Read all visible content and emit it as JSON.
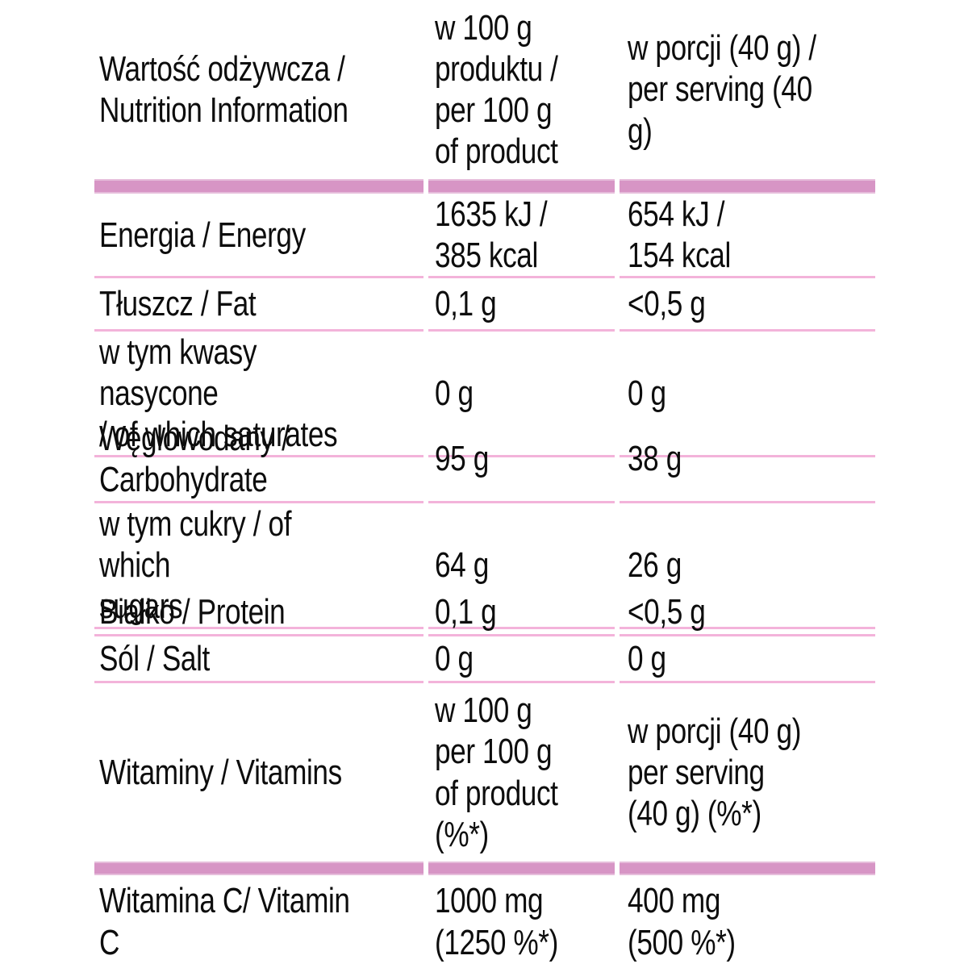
{
  "colors": {
    "thick_bar": "#d795c5",
    "thin_line": "#f3b3da",
    "text": "#0d0d0d",
    "background": "#ffffff"
  },
  "table": {
    "header": {
      "nutrition_information": "Wartość odżywcza /\nNutrition Information",
      "per_100g": "w 100 g\nproduktu /\nper 100 g\nof product",
      "per_serving": "w porcji (40 g) /\nper serving (40 g)"
    },
    "rows": [
      {
        "label": "Energia / Energy",
        "per_100g": "1635 kJ /\n385 kcal",
        "per_serving": "654 kJ /\n154 kcal"
      },
      {
        "label": "Tłuszcz / Fat",
        "per_100g": "0,1 g",
        "per_serving": "<0,5 g"
      },
      {
        "label": "w tym kwasy nasycone\n/ of which saturates",
        "per_100g": "0 g",
        "per_serving": "0 g"
      },
      {
        "label": "Węglowodany /\nCarbohydrate",
        "per_100g": "95 g",
        "per_serving": "38 g"
      },
      {
        "label": "w tym cukry / of which\nsugars",
        "per_100g": "64 g",
        "per_serving": "26 g"
      },
      {
        "label": "Białko / Protein",
        "per_100g": "0,1 g",
        "per_serving": "<0,5 g"
      },
      {
        "label": "Sól / Salt",
        "per_100g": "0 g",
        "per_serving": "0 g"
      }
    ],
    "vitamins_header": {
      "label": "Witaminy / Vitamins",
      "per_100g": "w 100 g\nper 100 g\nof product\n(%*)",
      "per_serving": "w porcji (40 g)\nper serving\n(40 g) (%*)"
    },
    "vitamin_rows": [
      {
        "label": "Witamina C/ Vitamin C",
        "per_100g": "1000 mg\n(1250 %*)",
        "per_serving": "400 mg\n(500 %*)"
      }
    ]
  }
}
